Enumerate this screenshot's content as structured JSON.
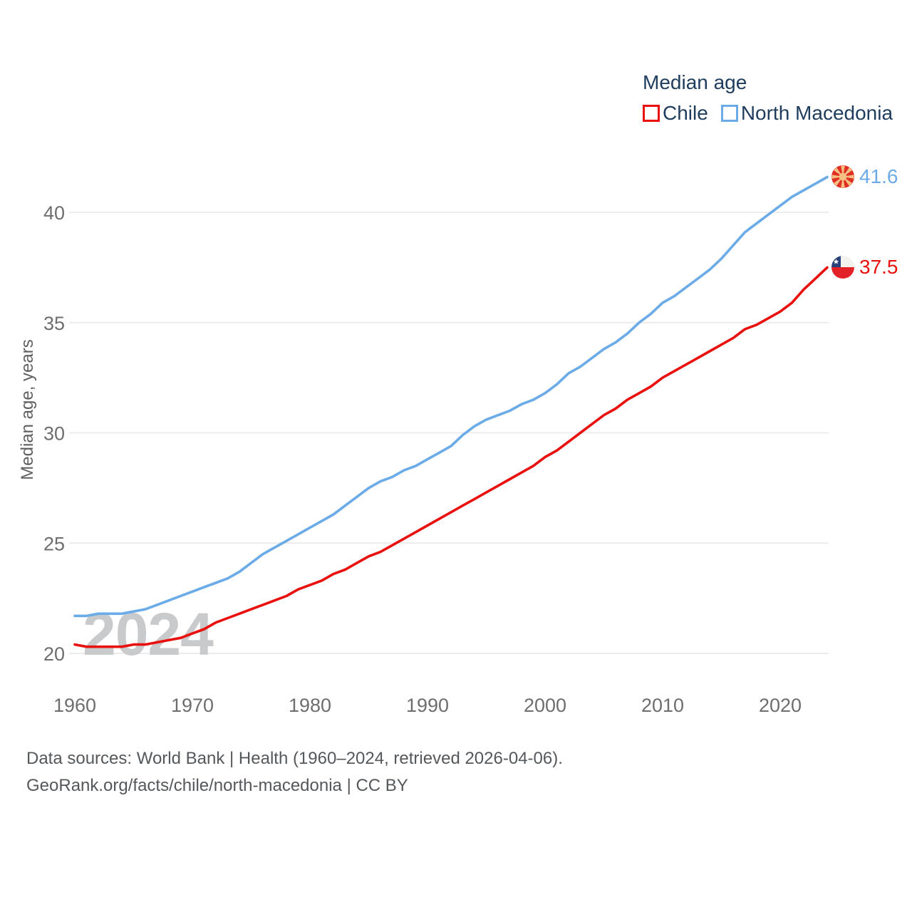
{
  "legend": {
    "title": "Median age",
    "items": [
      {
        "label": "Chile",
        "color": "#e8110d"
      },
      {
        "label": "North Macedonia",
        "color": "#6aabe8"
      }
    ]
  },
  "chart_data": {
    "type": "line",
    "title": "Median age",
    "ylabel": "Median age, years",
    "xlabel": "",
    "grid": true,
    "legend_position": "top-right",
    "xlim": [
      1960,
      2024
    ],
    "ylim": [
      19.5,
      42.5
    ],
    "xticks": [
      1960,
      1970,
      1980,
      1990,
      2000,
      2010,
      2020
    ],
    "yticks": [
      20,
      25,
      30,
      35,
      40
    ],
    "x": [
      1960,
      1961,
      1962,
      1963,
      1964,
      1965,
      1966,
      1967,
      1968,
      1969,
      1970,
      1971,
      1972,
      1973,
      1974,
      1975,
      1976,
      1977,
      1978,
      1979,
      1980,
      1981,
      1982,
      1983,
      1984,
      1985,
      1986,
      1987,
      1988,
      1989,
      1990,
      1991,
      1992,
      1993,
      1994,
      1995,
      1996,
      1997,
      1998,
      1999,
      2000,
      2001,
      2002,
      2003,
      2004,
      2005,
      2006,
      2007,
      2008,
      2009,
      2010,
      2011,
      2012,
      2013,
      2014,
      2015,
      2016,
      2017,
      2018,
      2019,
      2020,
      2021,
      2022,
      2023,
      2024
    ],
    "series": [
      {
        "name": "Chile",
        "color": "#e8110d",
        "values": [
          20.4,
          20.3,
          20.3,
          20.3,
          20.3,
          20.4,
          20.4,
          20.5,
          20.6,
          20.7,
          20.9,
          21.1,
          21.4,
          21.6,
          21.8,
          22.0,
          22.2,
          22.4,
          22.6,
          22.9,
          23.1,
          23.3,
          23.6,
          23.8,
          24.1,
          24.4,
          24.6,
          24.9,
          25.2,
          25.5,
          25.8,
          26.1,
          26.4,
          26.7,
          27.0,
          27.3,
          27.6,
          27.9,
          28.2,
          28.5,
          28.9,
          29.2,
          29.6,
          30.0,
          30.4,
          30.8,
          31.1,
          31.5,
          31.8,
          32.1,
          32.5,
          32.8,
          33.1,
          33.4,
          33.7,
          34.0,
          34.3,
          34.7,
          34.9,
          35.2,
          35.5,
          35.9,
          36.5,
          37.0,
          37.5
        ]
      },
      {
        "name": "North Macedonia",
        "color": "#6aabe8",
        "values": [
          21.7,
          21.7,
          21.8,
          21.8,
          21.8,
          21.9,
          22.0,
          22.2,
          22.4,
          22.6,
          22.8,
          23.0,
          23.2,
          23.4,
          23.7,
          24.1,
          24.5,
          24.8,
          25.1,
          25.4,
          25.7,
          26.0,
          26.3,
          26.7,
          27.1,
          27.5,
          27.8,
          28.0,
          28.3,
          28.5,
          28.8,
          29.1,
          29.4,
          29.9,
          30.3,
          30.6,
          30.8,
          31.0,
          31.3,
          31.5,
          31.8,
          32.2,
          32.7,
          33.0,
          33.4,
          33.8,
          34.1,
          34.5,
          35.0,
          35.4,
          35.9,
          36.2,
          36.6,
          37.0,
          37.4,
          37.9,
          38.5,
          39.1,
          39.5,
          39.9,
          40.3,
          40.7,
          41.0,
          41.3,
          41.6
        ]
      }
    ]
  },
  "end_labels": [
    {
      "series": "North Macedonia",
      "series_index": 1,
      "value": "41.6"
    },
    {
      "series": "Chile",
      "series_index": 0,
      "value": "37.5"
    }
  ],
  "watermark": {
    "text": "2024"
  },
  "footer": {
    "line1": "Data sources: World Bank | Health (1960–2024, retrieved 2026-04-06).",
    "line2": "GeoRank.org/facts/chile/north-macedonia | CC BY"
  }
}
